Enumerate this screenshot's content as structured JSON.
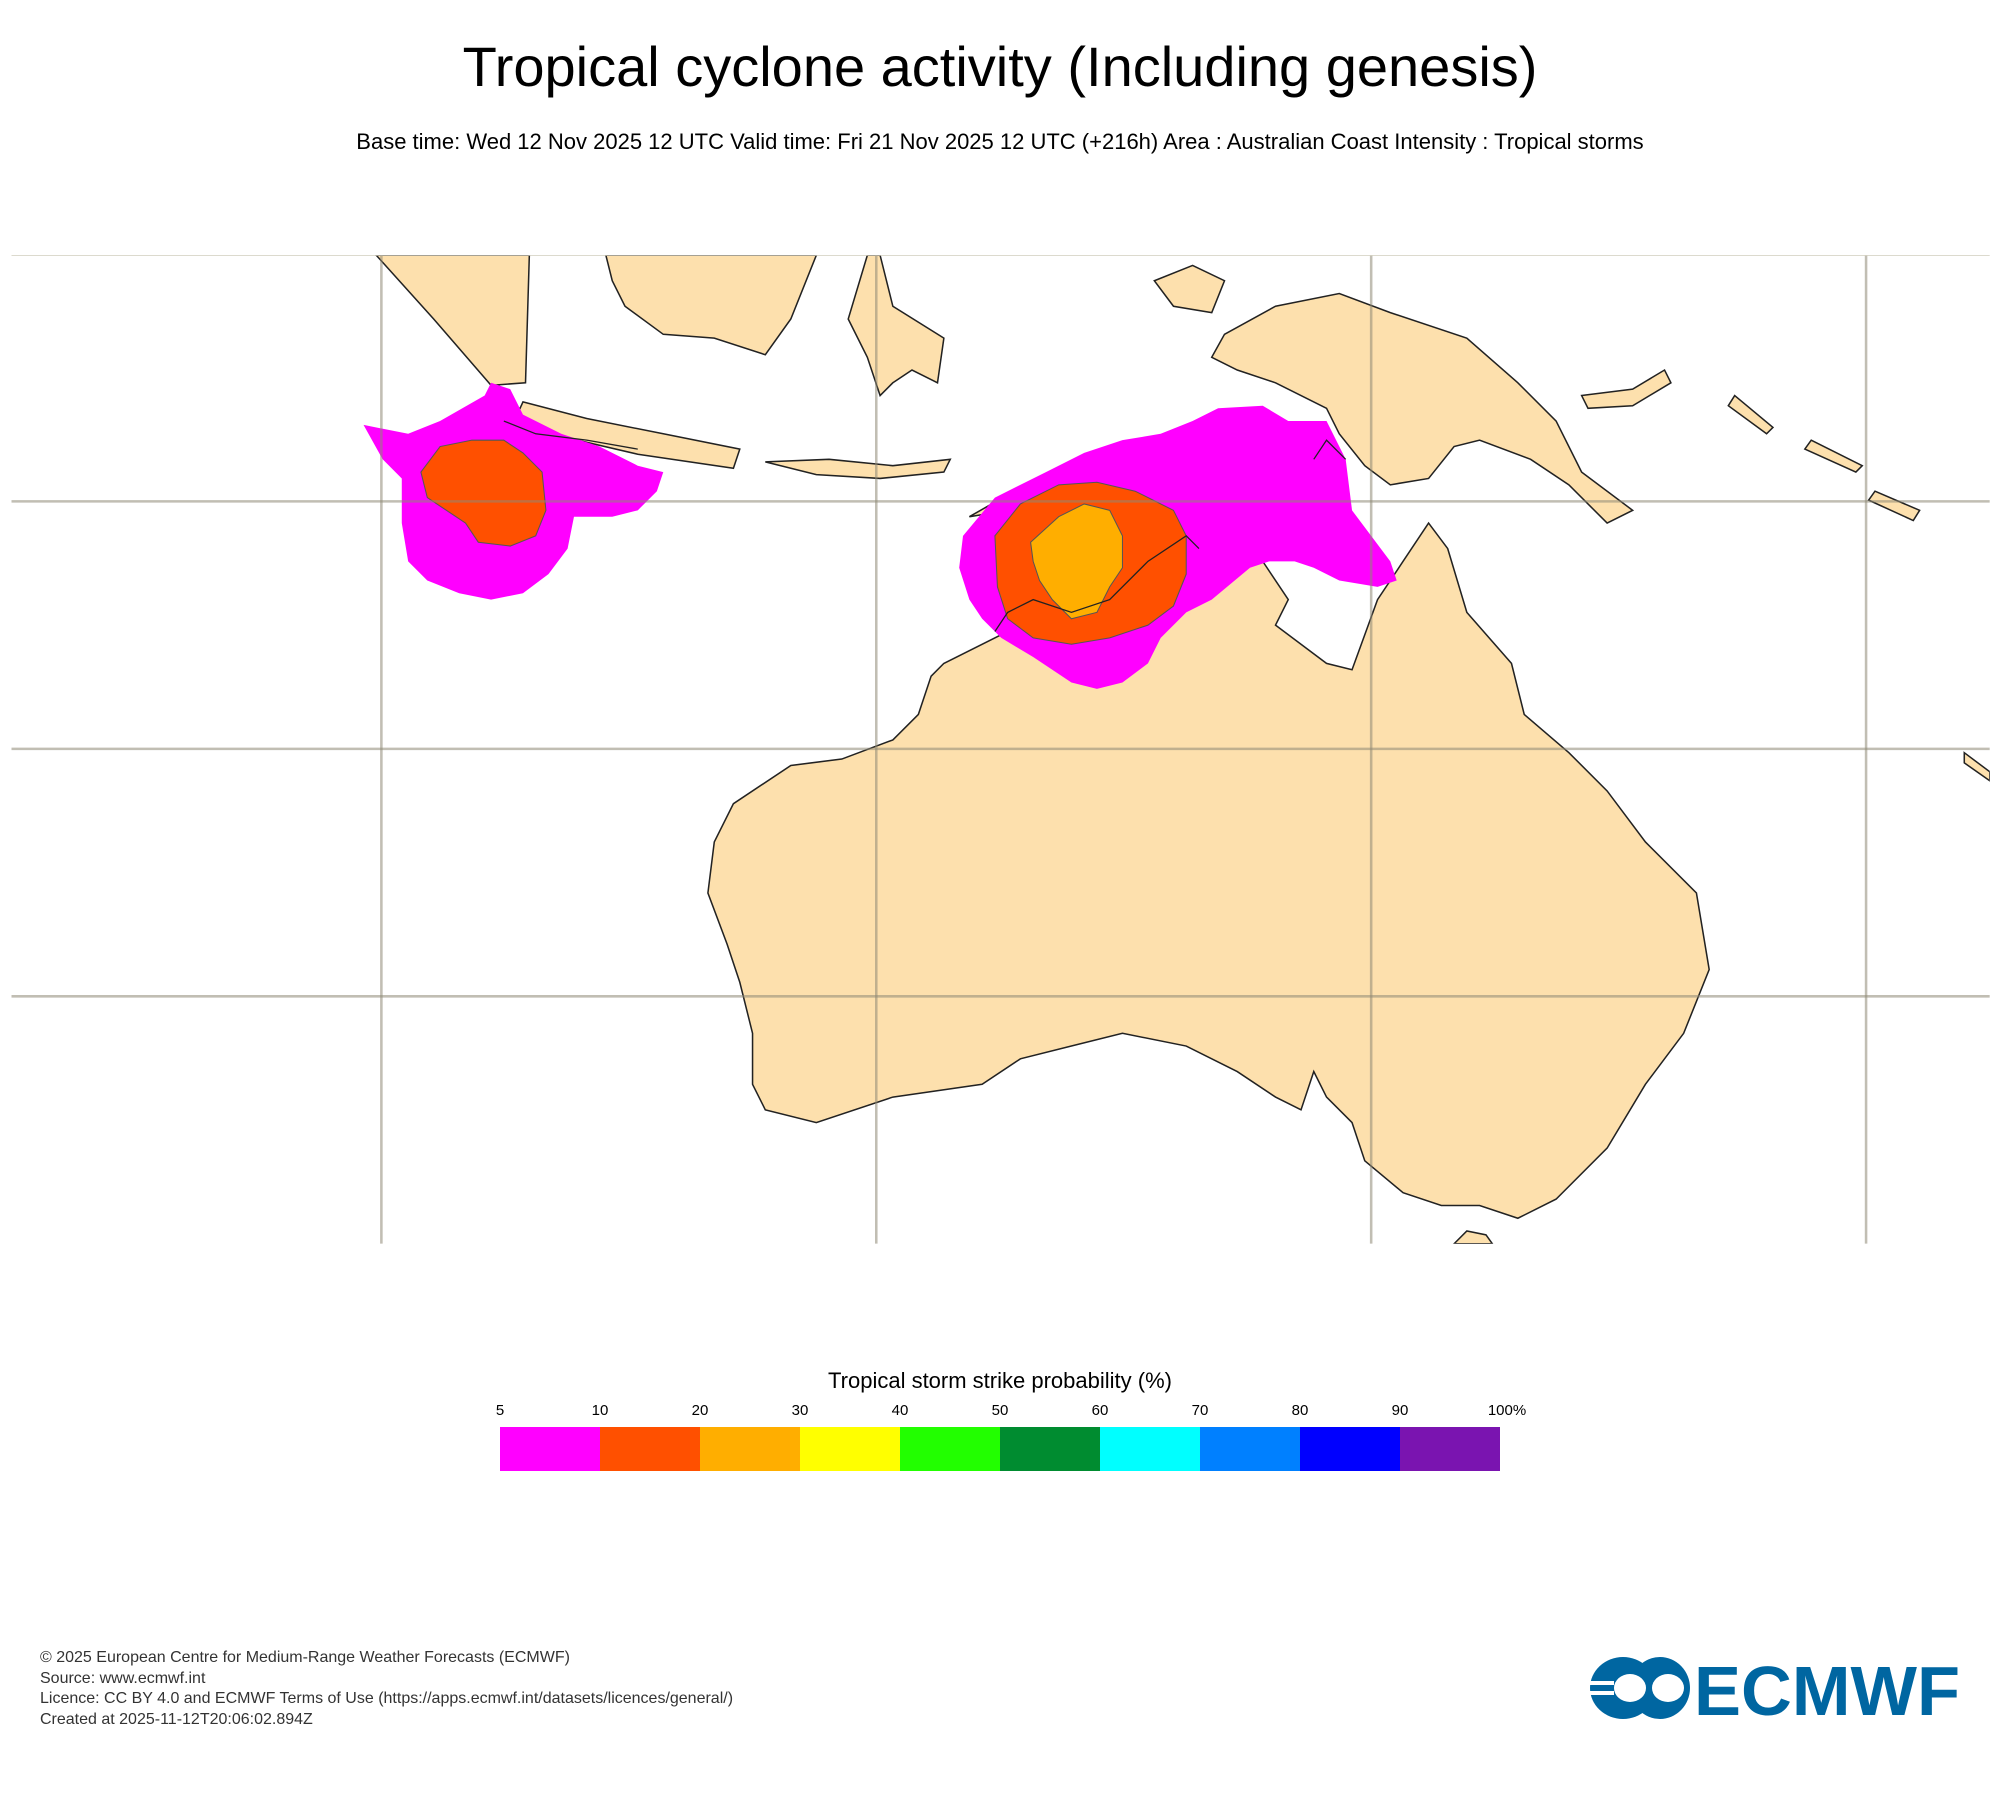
{
  "header": {
    "title": "Tropical cyclone activity (Including genesis)",
    "subtitle": "Base time: Wed 12 Nov 2025 12 UTC Valid time: Fri 21 Nov 2025 12 UTC (+216h) Area : Australian Coast Intensity : Tropical storms"
  },
  "map": {
    "land_color": "#fde0ad",
    "ocean_color": "#ffffff",
    "gridline_color": "#b8b2a0",
    "probability_areas": [
      {
        "region": "west of Java",
        "levels": [
          "5-10",
          "10-20"
        ]
      },
      {
        "region": "Timor Sea / Northern Territory",
        "levels": [
          "5-10",
          "10-20",
          "20-30"
        ]
      }
    ]
  },
  "legend": {
    "title": "Tropical storm strike probability (%)",
    "ticks": [
      "5",
      "10",
      "20",
      "30",
      "40",
      "50",
      "60",
      "70",
      "80",
      "90",
      "100%"
    ],
    "colors": [
      "#ff00ff",
      "#ff5000",
      "#ffae00",
      "#ffff00",
      "#22ff00",
      "#008c30",
      "#00ffff",
      "#0080ff",
      "#0000ff",
      "#7a14b0"
    ]
  },
  "footer": {
    "copyright": "© 2025 European Centre for Medium-Range Weather Forecasts (ECMWF)",
    "source": "Source: www.ecmwf.int",
    "licence": "Licence: CC BY 4.0 and ECMWF Terms of Use (https://apps.ecmwf.int/datasets/licences/general/)",
    "created": "Created at 2025-11-12T20:06:02.894Z"
  },
  "logo": {
    "text": "ECMWF",
    "color": "#0066a1"
  }
}
